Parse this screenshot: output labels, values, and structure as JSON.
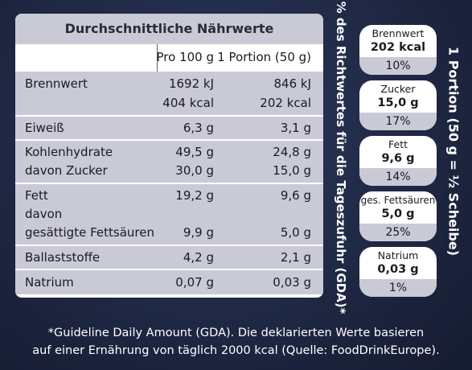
{
  "table": {
    "title": "Durchschnittliche Nährwerte",
    "header": {
      "col_per100": "Pro 100 g",
      "col_portion": "1 Portion (50 g)"
    },
    "brennwert": {
      "label": "Brennwert",
      "kj_100": "1692 kJ",
      "kj_portion": "846 kJ",
      "kcal_100": "404 kcal",
      "kcal_portion": "202 kcal"
    },
    "eiweiss": {
      "label": "Eiweiß",
      "per100": "6,3 g",
      "portion": "3,1 g"
    },
    "kohlenhydrate": {
      "label": "Kohlenhydrate",
      "per100": "49,5 g",
      "portion": "24,8 g"
    },
    "zucker": {
      "label": "davon Zucker",
      "per100": "30,0 g",
      "portion": "15,0 g"
    },
    "fett": {
      "label": "Fett",
      "per100": "19,2 g",
      "portion": "9,6 g"
    },
    "fett_davon": {
      "label": "davon"
    },
    "fettsaeuren": {
      "label": "gesättigte Fettsäuren",
      "per100": "9,9 g",
      "portion": "5,0 g"
    },
    "ballaststoffe": {
      "label": "Ballaststoffe",
      "per100": "4,2 g",
      "portion": "2,1 g"
    },
    "natrium": {
      "label": "Natrium",
      "per100": "0,07 g",
      "portion": "0,03 g"
    }
  },
  "gda_label": "% des Richtwertes für die Tageszufuhr (GDA)*",
  "portion_label": "1 Portion (50 g = ½ Scheibe)",
  "badges": [
    {
      "name": "Brennwert",
      "value": "202 kcal",
      "percent": "10%"
    },
    {
      "name": "Zucker",
      "value": "15,0 g",
      "percent": "17%"
    },
    {
      "name": "Fett",
      "value": "9,6 g",
      "percent": "14%"
    },
    {
      "name": "ges. Fettsäuren",
      "value": "5,0 g",
      "percent": "25%"
    },
    {
      "name": "Natrium",
      "value": "0,03 g",
      "percent": "1%"
    }
  ],
  "footnote": {
    "line1": "*Guideline Daily Amount (GDA). Die deklarierten Werte basieren",
    "line2": "auf einer Ernährung von täglich 2000 kcal (Quelle: FoodDrinkEurope)."
  },
  "colors": {
    "background": "#1f2742",
    "shade": "#c9cad6",
    "text": "#1a1a22"
  }
}
